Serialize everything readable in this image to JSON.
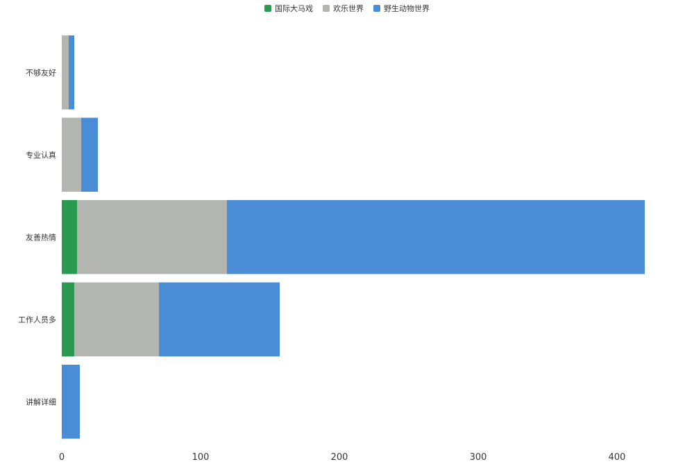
{
  "chart_data": {
    "type": "bar",
    "orientation": "horizontal",
    "stacked": true,
    "categories": [
      "不够友好",
      "专业认真",
      "友善热情",
      "工作人员多",
      "讲解详细"
    ],
    "series": [
      {
        "name": "国际大马戏",
        "color": "#2a9a52",
        "values": [
          0,
          0,
          11,
          9,
          0
        ]
      },
      {
        "name": "欢乐世界",
        "color": "#b3b5b0",
        "values": [
          5,
          14,
          108,
          61,
          0
        ]
      },
      {
        "name": "野生动物世界",
        "color": "#4a8cd6",
        "values": [
          4,
          12,
          301,
          87,
          13
        ]
      }
    ],
    "xticks": [
      0,
      100,
      200,
      300,
      400
    ],
    "xlim": [
      0,
      450
    ],
    "legend_position": "top-center",
    "grid": false
  }
}
